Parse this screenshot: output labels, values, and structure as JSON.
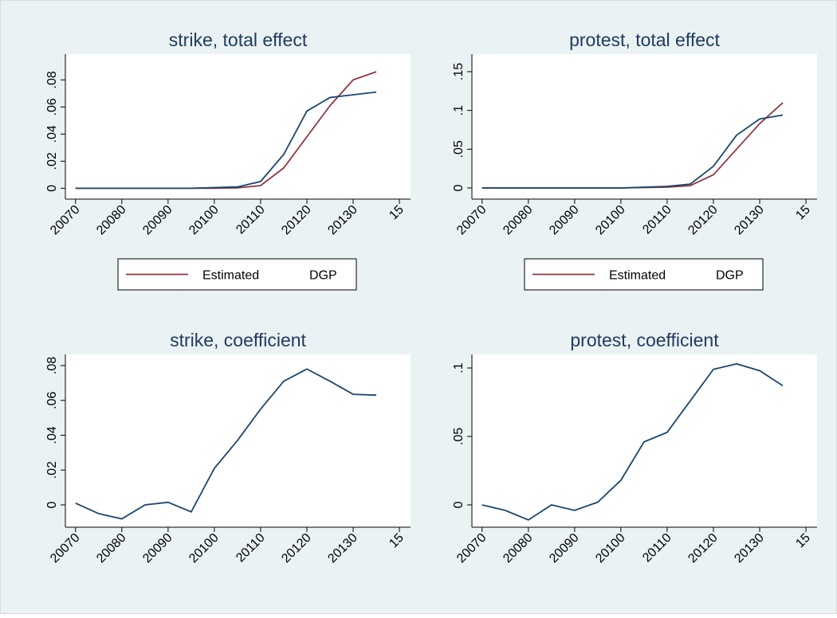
{
  "chart_data": [
    {
      "type": "line",
      "title": "strike, total effect",
      "x": [
        2007,
        2007.5,
        2008,
        2008.5,
        2009,
        2009.5,
        2010,
        2010.5,
        2011,
        2011.5,
        2012,
        2012.5,
        2013,
        2013.5
      ],
      "series": [
        {
          "name": "Estimated",
          "color": "#90353b",
          "values": [
            0,
            0,
            0,
            0,
            0,
            0,
            0,
            0.0003,
            0.002,
            0.015,
            0.038,
            0.061,
            0.08,
            0.086
          ]
        },
        {
          "name": "DGP",
          "color": "#1a476f",
          "values": [
            0,
            0,
            0,
            0,
            0,
            0,
            0.0005,
            0.001,
            0.005,
            0.025,
            0.057,
            0.067,
            0.069,
            0.071
          ]
        }
      ],
      "xlim": [
        2006.78,
        2014.24
      ],
      "xticks": [
        {
          "value": 2007,
          "label": "20070"
        },
        {
          "value": 2008,
          "label": "20080"
        },
        {
          "value": 2009,
          "label": "20090"
        },
        {
          "value": 2010,
          "label": "20100"
        },
        {
          "value": 2011,
          "label": "20110"
        },
        {
          "value": 2012,
          "label": "20120"
        },
        {
          "value": 2013,
          "label": "20130"
        },
        {
          "value": 2014,
          "label": "15"
        }
      ],
      "ylim": [
        -0.008,
        0.099
      ],
      "yticks": [
        0,
        {
          "value": 0.02,
          "label": ".02"
        },
        {
          "value": 0.04,
          "label": ".04"
        },
        {
          "value": 0.06,
          "label": ".06"
        },
        {
          "value": 0.08,
          "label": ".08"
        }
      ],
      "legend": "bottom"
    },
    {
      "type": "line",
      "title": "protest, total effect",
      "x": [
        2007,
        2007.5,
        2008,
        2008.5,
        2009,
        2009.5,
        2010,
        2010.5,
        2011,
        2011.5,
        2012,
        2012.5,
        2013,
        2013.5
      ],
      "series": [
        {
          "name": "Estimated",
          "color": "#90353b",
          "values": [
            0,
            0,
            0,
            0,
            0,
            0,
            0,
            0.0005,
            0.001,
            0.003,
            0.017,
            0.05,
            0.083,
            0.11
          ]
        },
        {
          "name": "DGP",
          "color": "#1a476f",
          "values": [
            0,
            0,
            0,
            0,
            0,
            0,
            0,
            0.001,
            0.002,
            0.005,
            0.028,
            0.068,
            0.089,
            0.094
          ]
        }
      ],
      "xlim": [
        2006.78,
        2014.24
      ],
      "xticks": [
        {
          "value": 2007,
          "label": "20070"
        },
        {
          "value": 2008,
          "label": "20080"
        },
        {
          "value": 2009,
          "label": "20090"
        },
        {
          "value": 2010,
          "label": "20100"
        },
        {
          "value": 2011,
          "label": "20110"
        },
        {
          "value": 2012,
          "label": "20120"
        },
        {
          "value": 2013,
          "label": "20130"
        },
        {
          "value": 2014,
          "label": "15"
        }
      ],
      "ylim": [
        -0.0144,
        0.1726
      ],
      "yticks": [
        0,
        {
          "value": 0.05,
          "label": ".05"
        },
        {
          "value": 0.1,
          "label": ".1"
        },
        {
          "value": 0.15,
          "label": ".15"
        }
      ],
      "legend": "bottom"
    },
    {
      "type": "line",
      "title": "strike, coefficient",
      "x": [
        2007,
        2007.5,
        2008,
        2008.5,
        2009,
        2009.5,
        2010,
        2010.5,
        2011,
        2011.5,
        2012,
        2012.5,
        2013,
        2013.5
      ],
      "series": [
        {
          "color": "#1a476f",
          "values": [
            0.001,
            -0.005,
            -0.008,
            0,
            0.0015,
            -0.004,
            0.021,
            0.037,
            0.055,
            0.071,
            0.078,
            0.071,
            0.0635,
            0.063
          ]
        }
      ],
      "xlim": [
        2006.78,
        2014.24
      ],
      "xticks": [
        {
          "value": 2007,
          "label": "20070"
        },
        {
          "value": 2008,
          "label": "20080"
        },
        {
          "value": 2009,
          "label": "20090"
        },
        {
          "value": 2010,
          "label": "20100"
        },
        {
          "value": 2011,
          "label": "20110"
        },
        {
          "value": 2012,
          "label": "20120"
        },
        {
          "value": 2013,
          "label": "20130"
        },
        {
          "value": 2014,
          "label": "15"
        }
      ],
      "ylim": [
        -0.0128,
        0.0864
      ],
      "yticks": [
        0,
        {
          "value": 0.02,
          "label": ".02"
        },
        {
          "value": 0.04,
          "label": ".04"
        },
        {
          "value": 0.06,
          "label": ".06"
        },
        {
          "value": 0.08,
          "label": ".08"
        }
      ]
    },
    {
      "type": "line",
      "title": "protest, coefficient",
      "x": [
        2007,
        2007.5,
        2008,
        2008.5,
        2009,
        2009.5,
        2010,
        2010.5,
        2011,
        2011.5,
        2012,
        2012.5,
        2013,
        2013.5
      ],
      "series": [
        {
          "color": "#1a476f",
          "values": [
            0,
            -0.004,
            -0.011,
            0,
            -0.004,
            0.002,
            0.018,
            0.046,
            0.053,
            0.076,
            0.099,
            0.103,
            0.098,
            0.087
          ]
        }
      ],
      "xlim": [
        2006.78,
        2014.24
      ],
      "xticks": [
        {
          "value": 2007,
          "label": "20070"
        },
        {
          "value": 2008,
          "label": "20080"
        },
        {
          "value": 2009,
          "label": "20090"
        },
        {
          "value": 2010,
          "label": "20100"
        },
        {
          "value": 2011,
          "label": "20110"
        },
        {
          "value": 2012,
          "label": "20120"
        },
        {
          "value": 2013,
          "label": "20130"
        },
        {
          "value": 2014,
          "label": "15"
        }
      ],
      "ylim": [
        -0.0163,
        0.1099
      ],
      "yticks": [
        0,
        {
          "value": 0.05,
          "label": ".05"
        },
        {
          "value": 0.1,
          "label": ".1"
        }
      ]
    }
  ]
}
